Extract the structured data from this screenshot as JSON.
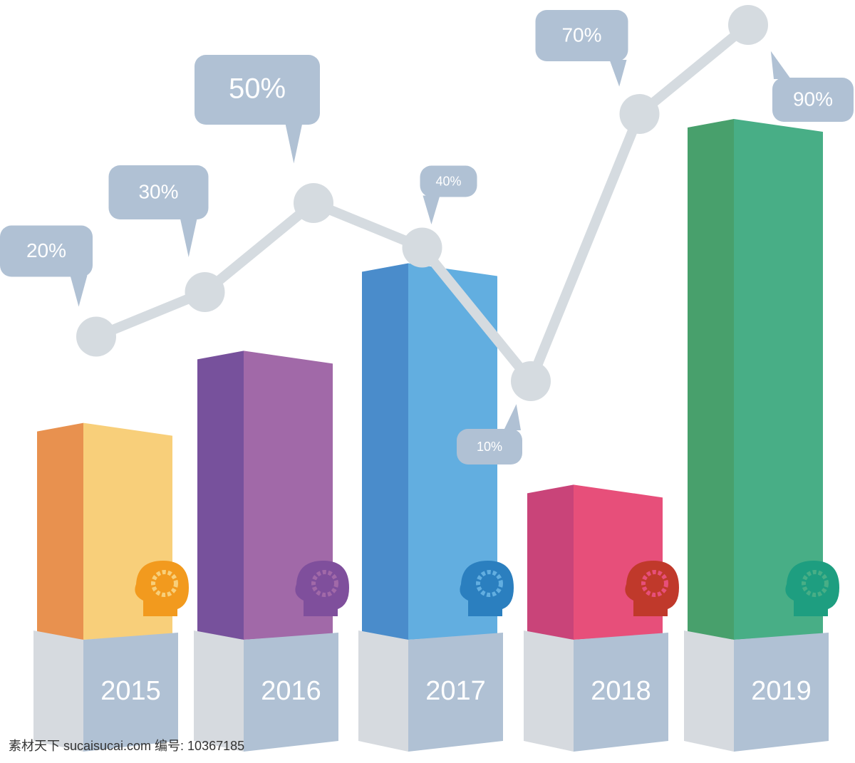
{
  "chart_data": [
    {
      "type": "bar",
      "categories": [
        "2015",
        "2016",
        "2017",
        "2018",
        "2019"
      ],
      "values": [
        41,
        55,
        72,
        29,
        100
      ],
      "ylim": [
        0,
        100
      ],
      "colors": [
        [
          "#e8914f",
          "#f8cf7a"
        ],
        [
          "#77519c",
          "#a169a8"
        ],
        [
          "#4a8ccb",
          "#62aee0"
        ],
        [
          "#c94479",
          "#e74f7a"
        ],
        [
          "#48a06c",
          "#48ae86"
        ]
      ],
      "icon_colors": [
        "#f29a1e",
        "#7f4f9c",
        "#2b7fbf",
        "#c0392b",
        "#1e9e80"
      ]
    },
    {
      "type": "line",
      "categories": [
        null,
        null,
        null,
        null,
        null,
        null,
        null
      ],
      "values": [
        20,
        30,
        50,
        40,
        10,
        70,
        90
      ],
      "value_labels": [
        "20%",
        "30%",
        "50%",
        "40%",
        "10%",
        "70%",
        "90%"
      ],
      "ylim": [
        10,
        90
      ],
      "color": "#d5dbe0"
    }
  ],
  "watermark": "素材天下 sucaisucai.com  编号: 10367185"
}
